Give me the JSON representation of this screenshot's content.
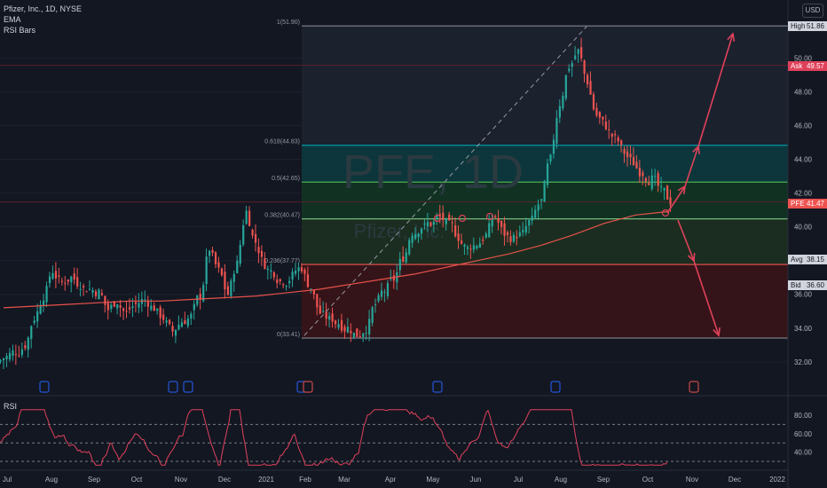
{
  "legend": {
    "symbol": "Pfizer, Inc., 1D, NYSE",
    "ema": "EMA",
    "rsi_bars": "RSI Bars"
  },
  "currency": "USD",
  "watermark": {
    "ticker": "PFE, 1D",
    "name": "Pfizer, Inc."
  },
  "price_tags": {
    "high": {
      "label": "High",
      "value": "51.86"
    },
    "ask": {
      "label": "Ask",
      "value": "49.57"
    },
    "last": {
      "label": "PFE",
      "value": "41.47"
    },
    "avg": {
      "label": "Avg",
      "value": "38.15"
    },
    "bid": {
      "label": "Bid",
      "value": "36.60"
    }
  },
  "colors": {
    "bull": "#26a69a",
    "bear": "#ef5350",
    "ema": "#e8524a",
    "rsi": "#e0415a",
    "fib_top": "#787b86",
    "fib_618": "#0097a7",
    "fib_05": "#4caf50",
    "fib_382": "#81c784",
    "fib_236": "#ef5350",
    "arrow": "#e0415a"
  },
  "chart_data": {
    "type": "candlestick",
    "title": "Pfizer, Inc., 1D, NYSE",
    "price_axis": {
      "min": 31,
      "max": 53,
      "ticks": [
        32,
        34,
        36,
        38,
        40,
        42,
        44,
        46,
        48,
        50
      ]
    },
    "x_ticks": [
      "Jul",
      "Aug",
      "Sep",
      "Oct",
      "Nov",
      "Dec",
      "2021",
      "Feb",
      "Mar",
      "Apr",
      "May",
      "Jun",
      "Jul",
      "Aug",
      "Sep",
      "Oct",
      "Nov",
      "Dec",
      "2022"
    ],
    "series_close": [
      32.3,
      32.6,
      33.0,
      34.6,
      35.9,
      37.4,
      36.7,
      37.0,
      36.6,
      36.3,
      36.1,
      35.1,
      35.6,
      34.9,
      35.4,
      35.7,
      35.2,
      34.6,
      33.8,
      34.4,
      34.7,
      35.9,
      38.7,
      37.4,
      36.0,
      37.8,
      40.9,
      39.1,
      37.8,
      37.3,
      36.8,
      37.1,
      37.6,
      36.4,
      34.9,
      34.5,
      34.3,
      34.0,
      33.6,
      34.0,
      35.4,
      36.2,
      36.9,
      38.2,
      39.7,
      40.0,
      40.2,
      40.6,
      40.1,
      39.4,
      38.7,
      39.0,
      39.5,
      40.6,
      39.6,
      39.3,
      39.6,
      40.4,
      41.5,
      44.0,
      47.3,
      49.5,
      50.4,
      48.6,
      46.6,
      46.0,
      45.2,
      44.4,
      43.8,
      43.2,
      42.8,
      42.1,
      41.5
    ],
    "ema": [
      35.2,
      35.3,
      35.4,
      35.5,
      35.6,
      35.6,
      35.7,
      35.8,
      35.9,
      36.1,
      36.3,
      36.6,
      36.9,
      37.2,
      37.6,
      38.0,
      38.4,
      38.9,
      39.5,
      40.2,
      40.7,
      40.9
    ],
    "rsi": {
      "ticks": [
        40.0,
        60.0,
        80.0
      ],
      "upper": 70,
      "middle": 50,
      "lower": 30
    },
    "fib_levels": [
      {
        "label": "1(51.90)",
        "value": 51.9
      },
      {
        "label": "0.618(44.83)",
        "value": 44.83
      },
      {
        "label": "0.5(42.65)",
        "value": 42.65
      },
      {
        "label": "0.382(40.47)",
        "value": 40.47
      },
      {
        "label": "0.236(37.77)",
        "value": 37.77
      },
      {
        "label": "0(33.41)",
        "value": 33.41
      }
    ]
  }
}
